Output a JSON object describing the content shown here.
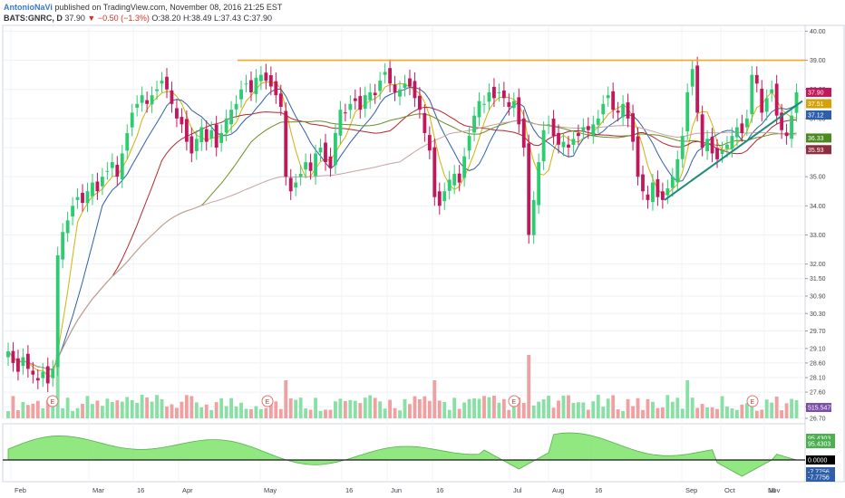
{
  "header": {
    "author": "AntonioNaVi",
    "published": "published on TradingView.com, November 08, 2016 21:25 EST",
    "symbol": "BATS:GNRC, D",
    "price": "37.90",
    "change": "−0.50 (−1.3%)",
    "open": "O:38.20",
    "high": "H:38.49",
    "low": "L:37.43",
    "close": "C:37.90"
  },
  "colors": {
    "up": "#2ecc71",
    "down": "#c2185b",
    "resistance": "#f5a623",
    "trendline": "#1e8a7a",
    "ma_fast": "#d4b106",
    "ma_mid": "#2f5fa8",
    "ma_slow_red": "#b2282f",
    "ma_slow_green": "#6b8e23",
    "ma_long": "#c8a2a2",
    "vol_up": "#88e0a4",
    "vol_down": "#f0a0a0",
    "osc_fill": "#7ee36b",
    "osc_neg": "#4ec8f0"
  },
  "chart_data": {
    "type": "candlestick",
    "ylim": [
      26.7,
      40.2
    ],
    "yticks": [
      "40.00",
      "39.00",
      "38.00",
      "37.00",
      "36.00",
      "35.00",
      "34.00",
      "33.00",
      "32.00",
      "31.50",
      "30.90",
      "30.30",
      "29.70",
      "29.10",
      "28.60",
      "28.10",
      "27.60",
      "27.10",
      "26.70"
    ],
    "xticks": [
      "Feb",
      "Mar",
      "16",
      "Apr",
      "May",
      "16",
      "Jun",
      "16",
      "Jul",
      "Aug",
      "16",
      "Sep",
      "Oct",
      "16",
      "Nov"
    ],
    "close_points": [
      [
        0,
        29.0
      ],
      [
        1,
        28.6
      ],
      [
        2,
        28.3
      ],
      [
        3,
        28.8
      ],
      [
        4,
        28.4
      ],
      [
        5,
        28.2
      ],
      [
        6,
        28.0
      ],
      [
        7,
        28.3
      ],
      [
        8,
        27.9
      ],
      [
        9,
        28.4
      ],
      [
        10,
        32.3
      ],
      [
        11,
        33.1
      ],
      [
        12,
        33.5
      ],
      [
        13,
        34.0
      ],
      [
        14,
        34.3
      ],
      [
        15,
        34.1
      ],
      [
        16,
        34.5
      ],
      [
        17,
        34.8
      ],
      [
        18,
        34.5
      ],
      [
        19,
        35.0
      ],
      [
        20,
        35.2
      ],
      [
        21,
        35.5
      ],
      [
        22,
        35.0
      ],
      [
        23,
        35.8
      ],
      [
        24,
        36.5
      ],
      [
        25,
        37.2
      ],
      [
        26,
        37.5
      ],
      [
        27,
        37.8
      ],
      [
        28,
        37.5
      ],
      [
        29,
        37.8
      ],
      [
        30,
        38.0
      ],
      [
        31,
        38.3
      ],
      [
        32,
        38.0
      ],
      [
        33,
        37.5
      ],
      [
        34,
        37.0
      ],
      [
        35,
        36.8
      ],
      [
        36,
        36.2
      ],
      [
        37,
        35.8
      ],
      [
        38,
        36.3
      ],
      [
        39,
        36.7
      ],
      [
        40,
        36.2
      ],
      [
        41,
        36.6
      ],
      [
        42,
        36.0
      ],
      [
        43,
        36.5
      ],
      [
        44,
        37.0
      ],
      [
        45,
        37.3
      ],
      [
        46,
        37.5
      ],
      [
        47,
        38.0
      ],
      [
        48,
        38.2
      ],
      [
        49,
        37.9
      ],
      [
        50,
        38.4
      ],
      [
        51,
        38.5
      ],
      [
        52,
        38.3
      ],
      [
        53,
        38.1
      ],
      [
        54,
        37.8
      ],
      [
        55,
        37.4
      ],
      [
        56,
        35.0
      ],
      [
        57,
        34.5
      ],
      [
        58,
        34.8
      ],
      [
        59,
        35.1
      ],
      [
        60,
        35.5
      ],
      [
        61,
        35.2
      ],
      [
        62,
        35.8
      ],
      [
        63,
        36.0
      ],
      [
        64,
        35.5
      ],
      [
        65,
        35.3
      ],
      [
        66,
        36.5
      ],
      [
        67,
        37.3
      ],
      [
        68,
        37.2
      ],
      [
        69,
        37.5
      ],
      [
        70,
        37.6
      ],
      [
        71,
        37.3
      ],
      [
        72,
        37.8
      ],
      [
        73,
        37.9
      ],
      [
        74,
        37.8
      ],
      [
        75,
        38.3
      ],
      [
        76,
        38.6
      ],
      [
        77,
        38.2
      ],
      [
        78,
        37.9
      ],
      [
        79,
        38.0
      ],
      [
        80,
        38.2
      ],
      [
        81,
        38.1
      ],
      [
        82,
        37.7
      ],
      [
        83,
        37.3
      ],
      [
        84,
        36.5
      ],
      [
        85,
        35.9
      ],
      [
        86,
        34.3
      ],
      [
        87,
        34.0
      ],
      [
        88,
        34.5
      ],
      [
        89,
        34.9
      ],
      [
        90,
        35.1
      ],
      [
        91,
        34.8
      ],
      [
        92,
        35.7
      ],
      [
        93,
        36.4
      ],
      [
        94,
        37.1
      ],
      [
        95,
        37.6
      ],
      [
        96,
        37.5
      ],
      [
        97,
        37.9
      ],
      [
        98,
        37.7
      ],
      [
        99,
        37.9
      ],
      [
        100,
        37.7
      ],
      [
        101,
        37.4
      ],
      [
        102,
        37.6
      ],
      [
        103,
        36.8
      ],
      [
        104,
        36.0
      ],
      [
        105,
        33.0
      ],
      [
        106,
        34.2
      ],
      [
        107,
        35.5
      ],
      [
        108,
        36.6
      ],
      [
        109,
        36.8
      ],
      [
        110,
        36.4
      ],
      [
        111,
        36.1
      ],
      [
        112,
        36.2
      ],
      [
        113,
        36.0
      ],
      [
        114,
        36.3
      ],
      [
        115,
        36.4
      ],
      [
        116,
        36.7
      ],
      [
        117,
        36.6
      ],
      [
        118,
        36.8
      ],
      [
        119,
        37.0
      ],
      [
        120,
        37.5
      ],
      [
        121,
        37.8
      ],
      [
        122,
        37.3
      ],
      [
        123,
        37.2
      ],
      [
        124,
        37.5
      ],
      [
        125,
        37.0
      ],
      [
        126,
        36.2
      ],
      [
        127,
        35.0
      ],
      [
        128,
        34.5
      ],
      [
        129,
        34.2
      ],
      [
        130,
        34.8
      ],
      [
        131,
        34.3
      ],
      [
        132,
        34.2
      ],
      [
        133,
        34.6
      ],
      [
        134,
        35.0
      ],
      [
        135,
        35.6
      ],
      [
        136,
        36.4
      ],
      [
        137,
        37.9
      ],
      [
        138,
        38.7
      ],
      [
        139,
        37.2
      ],
      [
        140,
        36.0
      ],
      [
        141,
        36.3
      ],
      [
        142,
        35.8
      ],
      [
        143,
        35.6
      ],
      [
        144,
        35.9
      ],
      [
        145,
        36.1
      ],
      [
        146,
        36.4
      ],
      [
        147,
        36.7
      ],
      [
        148,
        36.5
      ],
      [
        149,
        37.0
      ],
      [
        150,
        38.5
      ],
      [
        151,
        38.2
      ],
      [
        152,
        37.2
      ],
      [
        153,
        37.7
      ],
      [
        154,
        38.0
      ],
      [
        155,
        37.1
      ],
      [
        156,
        36.6
      ],
      [
        157,
        36.4
      ],
      [
        158,
        37.1
      ],
      [
        159,
        37.9
      ]
    ],
    "resistance": 39.0,
    "current_price": 37.9,
    "price_tags": [
      {
        "value": "37.90",
        "y": 37.9
      },
      {
        "value": "37.51",
        "y": 37.51
      },
      {
        "value": "37.12",
        "y": 37.12
      },
      {
        "value": "36.33",
        "y": 36.33
      },
      {
        "value": "35.93",
        "y": 35.93
      },
      {
        "value": "515.547K",
        "y": 27.0
      }
    ],
    "earnings_markers": [
      "E",
      "E",
      "E",
      "E"
    ],
    "oscillator": {
      "values": [
        "95.4303",
        "95.4303",
        "0.0000",
        "-7.7756",
        "-7.7756"
      ]
    }
  }
}
